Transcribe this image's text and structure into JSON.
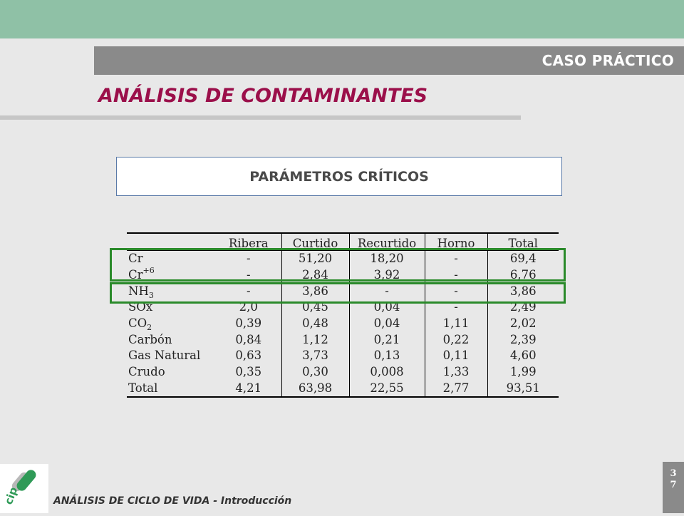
{
  "header": {
    "section_label": "CASO PRÁCTICO",
    "title": "ANÁLISIS DE CONTAMINANTES"
  },
  "panel": {
    "heading": "PARÁMETROS CRÍTICOS"
  },
  "table": {
    "columns": [
      "",
      "Ribera",
      "Curtido",
      "Recurtido",
      "Horno",
      "Total"
    ],
    "rows": [
      {
        "base": "Cr",
        "values": [
          "-",
          "51,20",
          "18,20",
          "-",
          "69,4"
        ]
      },
      {
        "base": "Cr",
        "sup": "+6",
        "values": [
          "-",
          "2,84",
          "3,92",
          "-",
          "6,76"
        ]
      },
      {
        "base": "NH",
        "sub": "3",
        "values": [
          "-",
          "3,86",
          "-",
          "-",
          "3,86"
        ]
      },
      {
        "base": "SOx",
        "values": [
          "2,0",
          "0,45",
          "0,04",
          "-",
          "2,49"
        ]
      },
      {
        "base": "CO",
        "sub": "2",
        "values": [
          "0,39",
          "0,48",
          "0,04",
          "1,11",
          "2,02"
        ]
      },
      {
        "base": "Carbón",
        "values": [
          "0,84",
          "1,12",
          "0,21",
          "0,22",
          "2,39"
        ]
      },
      {
        "base": "Gas Natural",
        "values": [
          "0,63",
          "3,73",
          "0,13",
          "0,11",
          "4,60"
        ]
      },
      {
        "base": "Crudo",
        "values": [
          "0,35",
          "0,30",
          "0,008",
          "1,33",
          "1,99"
        ]
      },
      {
        "base": "Total",
        "values": [
          "4,21",
          "63,98",
          "22,55",
          "2,77",
          "93,51"
        ]
      }
    ]
  },
  "footer": {
    "text": "ANÁLISIS DE CICLO DE VIDA - Introducción",
    "page_digit_1": "3",
    "page_digit_2": "7"
  },
  "logo": {
    "text": "cip"
  },
  "colors": {
    "band": "#8fc1a6",
    "section_bar": "#8a8a8a",
    "title": "#9b0f4a",
    "highlight": "#2a8a2a"
  }
}
